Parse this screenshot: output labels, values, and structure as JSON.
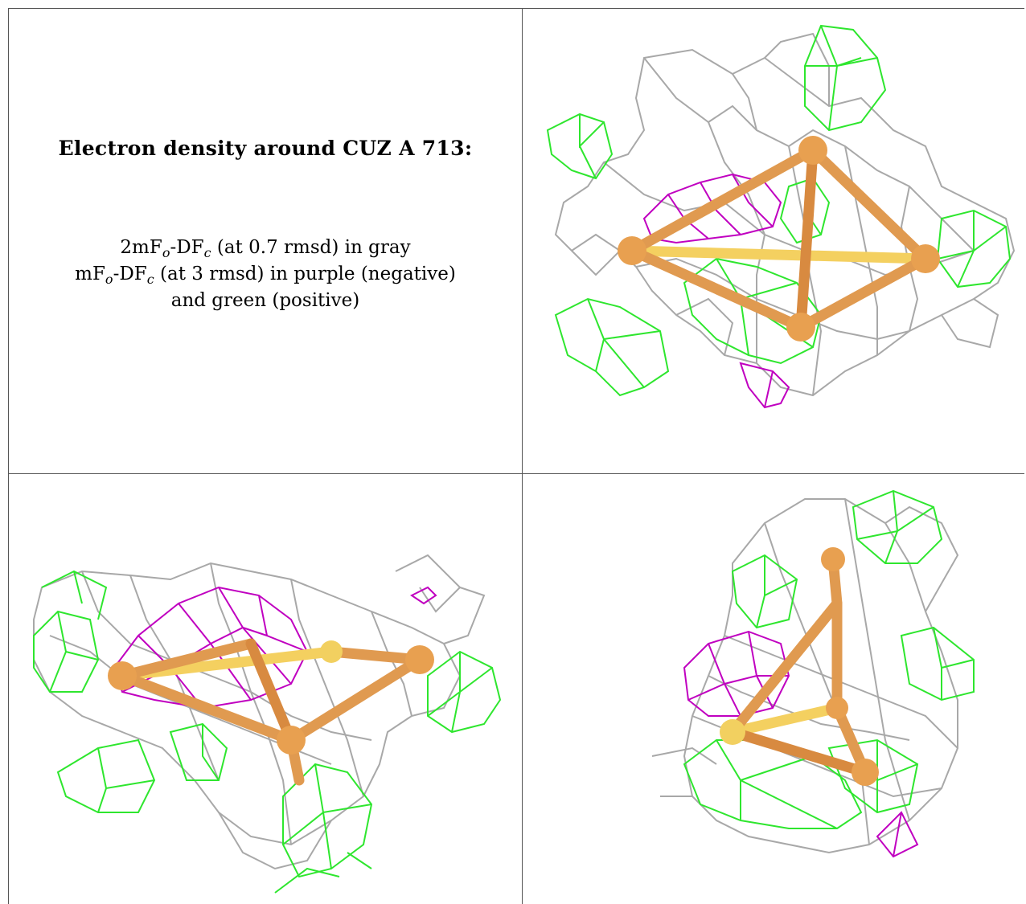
{
  "caption": {
    "title": "Electron density around CUZ A 713:",
    "line1_pre": "2mF",
    "line1_sub1": "o",
    "line1_mid": "-DF",
    "line1_sub2": "c",
    "line1_post": " (at 0.7 rmsd) in gray",
    "line2_pre": "mF",
    "line2_sub1": "o",
    "line2_mid": "-DF",
    "line2_sub2": "c",
    "line2_post": " (at 3 rmsd) in purple (negative)",
    "line3": "and green (positive)"
  },
  "colors": {
    "density_2fofc": "#9a9a9a",
    "negative": "#c000c0",
    "positive": "#22dd22",
    "model_stick": "#e8a050",
    "model_highlight": "#f2d060"
  },
  "panels": [
    {
      "view": "top-right"
    },
    {
      "view": "bottom-left"
    },
    {
      "view": "bottom-right"
    }
  ]
}
